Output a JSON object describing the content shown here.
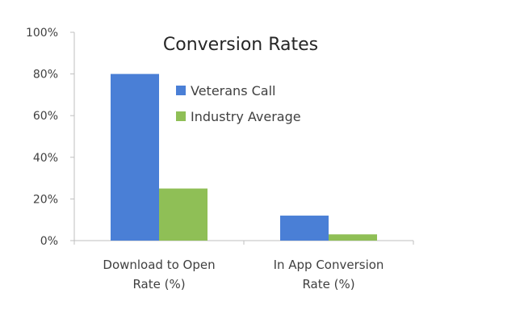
{
  "chart_data": {
    "type": "bar",
    "title": "Conversion Rates",
    "categories": [
      [
        "Download to Open",
        "Rate (%)"
      ],
      [
        "In App Conversion",
        "Rate (%)"
      ]
    ],
    "series": [
      {
        "name": "Veterans Call",
        "color": "#4A7FD6",
        "values": [
          80,
          12
        ]
      },
      {
        "name": "Industry Average",
        "color": "#8FBF56",
        "values": [
          25,
          3
        ]
      }
    ],
    "ylim": [
      0,
      100
    ],
    "yticks": [
      0,
      20,
      40,
      60,
      80,
      100
    ],
    "ytick_suffix": "%",
    "grid": false,
    "legend": "inside upper-center",
    "axis_color": "#BFBFBF"
  }
}
